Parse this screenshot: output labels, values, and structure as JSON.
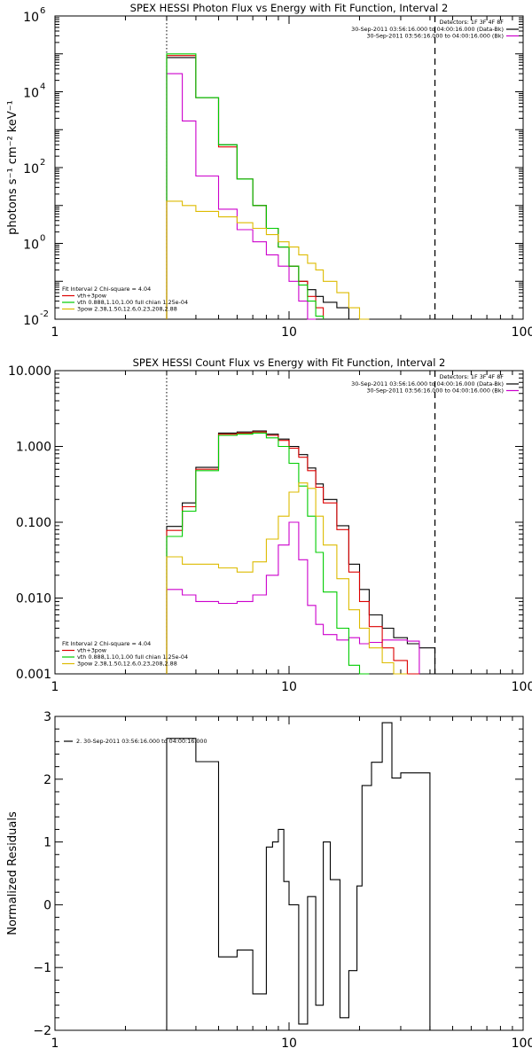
{
  "chart_data": [
    {
      "type": "line",
      "title": "SPEX HESSI Photon Flux vs Energy with Fit Function, Interval 2",
      "ylabel": "photons s⁻¹ cm⁻² keV⁻¹",
      "xlabel": "",
      "xscale": "log",
      "yscale": "log",
      "xlim": [
        1,
        100
      ],
      "ylim": [
        0.01,
        1000000
      ],
      "xticks": [
        {
          "v": 1,
          "label": "1"
        },
        {
          "v": 10,
          "label": "10"
        },
        {
          "v": 100,
          "label": "100"
        }
      ],
      "yticks": [
        {
          "v": 0.01,
          "label": "10",
          "exp": "-2"
        },
        {
          "v": 1,
          "label": "10",
          "exp": "0"
        },
        {
          "v": 100,
          "label": "10",
          "exp": "2"
        },
        {
          "v": 10000,
          "label": "10",
          "exp": "4"
        },
        {
          "v": 1000000,
          "label": "10",
          "exp": "6"
        }
      ],
      "vlines": [
        {
          "x": 3,
          "style": "dotted"
        },
        {
          "x": 42,
          "style": "dashed"
        }
      ],
      "legend_tr": {
        "header": "Detectors: 1F 3F 4F 8F",
        "entries": [
          {
            "text": "30-Sep-2011 03:56:16.000 to 04:00:16.000 (Data-Bk)",
            "color": "#000000"
          },
          {
            "text": "30-Sep-2011 03:56:16.000 to 04:00:16.000 (Bk)",
            "color": "#cc00cc"
          }
        ]
      },
      "legend_bl": {
        "header": "Fit Interval 2   Chi-square = 4.04",
        "entries": [
          {
            "text": "vth+3pow",
            "color": "#dd0000"
          },
          {
            "text": "vth 0.888,1.10,1.00  full chian 1.25e-04",
            "color": "#00cc00"
          },
          {
            "text": "3pow 2.38,1.50,12.6,0.23,208,2.88",
            "color": "#ddbb00"
          }
        ]
      },
      "edges": [
        3,
        3.5,
        4,
        5,
        6,
        7,
        8,
        9,
        10,
        11,
        12,
        13,
        14,
        16,
        18,
        20,
        22,
        25,
        28,
        32,
        36,
        42
      ],
      "series": [
        {
          "name": "Data-Bk",
          "color": "#000000",
          "values": [
            80000,
            80000,
            7000,
            400,
            50,
            10,
            2.5,
            0.8,
            0.25,
            0.1,
            0.06,
            0.04,
            0.028,
            0.02
          ]
        },
        {
          "name": "Bk",
          "color": "#cc00cc",
          "values": [
            30000,
            1700,
            60,
            8,
            2.3,
            1.1,
            0.5,
            0.25,
            0.1,
            0.03,
            0.007
          ]
        },
        {
          "name": "vth+3pow",
          "color": "#dd0000",
          "values": [
            90000,
            90000,
            7000,
            350,
            50,
            10,
            2.5,
            0.8,
            0.25,
            0.1,
            0.04,
            0.02
          ]
        },
        {
          "name": "vth",
          "color": "#00cc00",
          "values": [
            100000,
            100000,
            7000,
            400,
            50,
            10,
            2.5,
            0.8,
            0.25,
            0.08,
            0.03,
            0.012
          ]
        },
        {
          "name": "3pow",
          "color": "#ddbb00",
          "values": [
            13,
            10,
            7,
            5,
            3.5,
            2.5,
            1.7,
            1.1,
            0.8,
            0.5,
            0.3,
            0.2,
            0.1,
            0.05,
            0.02,
            0.01
          ]
        }
      ]
    },
    {
      "type": "line",
      "title": "SPEX HESSI Count Flux vs Energy with Fit Function, Interval 2",
      "xlabel": "",
      "ylabel": "",
      "xscale": "log",
      "yscale": "log",
      "xlim": [
        1,
        100
      ],
      "ylim": [
        0.001,
        10
      ],
      "xticks": [
        {
          "v": 1,
          "label": "1"
        },
        {
          "v": 10,
          "label": "10"
        },
        {
          "v": 100,
          "label": "100"
        }
      ],
      "yticks": [
        {
          "v": 0.001,
          "label": "0.001"
        },
        {
          "v": 0.01,
          "label": "0.010"
        },
        {
          "v": 0.1,
          "label": "0.100"
        },
        {
          "v": 1,
          "label": "1.000"
        },
        {
          "v": 10,
          "label": "10.000"
        }
      ],
      "vlines": [
        {
          "x": 3,
          "style": "dotted"
        },
        {
          "x": 42,
          "style": "dashed"
        }
      ],
      "legend_tr": {
        "header": "Detectors: 1F 3F 4F 8F",
        "entries": [
          {
            "text": "30-Sep-2011 03:56:16.000 to 04:00:16.000 (Data-Bk)",
            "color": "#000000"
          },
          {
            "text": "30-Sep-2011 03:56:16.000 to 04:00:16.000 (Bk)",
            "color": "#cc00cc"
          }
        ]
      },
      "legend_bl": {
        "header": "Fit Interval 2   Chi-square = 4.04",
        "entries": [
          {
            "text": "vth+3pow",
            "color": "#dd0000"
          },
          {
            "text": "vth 0.888,1.10,1.00  full chian 1.25e-04",
            "color": "#00cc00"
          },
          {
            "text": "3pow 2.38,1.50,12.6,0.23,208,2.88",
            "color": "#ddbb00"
          }
        ]
      },
      "edges": [
        3,
        3.5,
        4,
        5,
        6,
        7,
        8,
        9,
        10,
        11,
        12,
        13,
        14,
        16,
        18,
        20,
        22,
        25,
        28,
        32,
        36,
        42
      ],
      "series": [
        {
          "name": "Data-Bk",
          "color": "#000000",
          "values": [
            0.088,
            0.18,
            0.53,
            1.5,
            1.55,
            1.6,
            1.45,
            1.25,
            1.0,
            0.78,
            0.52,
            0.32,
            0.2,
            0.09,
            0.028,
            0.013,
            0.006,
            0.004,
            0.003,
            0.0025,
            0.0022
          ]
        },
        {
          "name": "Bk",
          "color": "#cc00cc",
          "values": [
            0.013,
            0.011,
            0.009,
            0.0085,
            0.009,
            0.011,
            0.02,
            0.05,
            0.1,
            0.032,
            0.008,
            0.0045,
            0.0033,
            0.0028,
            0.003,
            0.0025,
            0.0026,
            0.0028,
            0.0028,
            0.0027
          ]
        },
        {
          "name": "vth+3pow",
          "color": "#dd0000",
          "values": [
            0.078,
            0.16,
            0.5,
            1.45,
            1.5,
            1.55,
            1.4,
            1.2,
            0.95,
            0.72,
            0.48,
            0.29,
            0.18,
            0.08,
            0.022,
            0.009,
            0.0042,
            0.0022,
            0.0015,
            0.001
          ]
        },
        {
          "name": "vth",
          "color": "#00cc00",
          "values": [
            0.065,
            0.14,
            0.48,
            1.4,
            1.45,
            1.5,
            1.3,
            1.0,
            0.6,
            0.3,
            0.12,
            0.04,
            0.012,
            0.004,
            0.0013,
            0.001
          ]
        },
        {
          "name": "3pow",
          "color": "#ddbb00",
          "values": [
            0.035,
            0.028,
            0.028,
            0.025,
            0.022,
            0.03,
            0.06,
            0.12,
            0.25,
            0.33,
            0.28,
            0.12,
            0.05,
            0.018,
            0.007,
            0.004,
            0.0022,
            0.0014,
            0.001
          ]
        }
      ]
    },
    {
      "type": "line",
      "title": "",
      "ylabel": "Normalized Residuals",
      "xlabel": "",
      "xscale": "log",
      "yscale": "linear",
      "xlim": [
        1,
        100
      ],
      "ylim": [
        -2,
        3
      ],
      "xticks": [
        {
          "v": 1,
          "label": "1"
        },
        {
          "v": 10,
          "label": "10"
        },
        {
          "v": 100,
          "label": "100"
        }
      ],
      "yticks": [
        {
          "v": -2,
          "label": "−2"
        },
        {
          "v": -1,
          "label": "−1"
        },
        {
          "v": 0,
          "label": "0"
        },
        {
          "v": 1,
          "label": "1"
        },
        {
          "v": 2,
          "label": "2"
        },
        {
          "v": 3,
          "label": "3"
        }
      ],
      "legend_tl": {
        "entries": [
          {
            "text": "2. 30-Sep-2011 03:56:16.000 to 04:00:16.000",
            "color": "#000000"
          }
        ]
      },
      "edges": [
        3,
        4,
        5,
        6,
        7,
        8,
        8.5,
        9,
        9.5,
        10,
        11,
        12,
        13,
        14,
        15,
        16.5,
        18,
        19.5,
        20.5,
        22.5,
        25,
        27.5,
        30,
        33,
        36,
        40
      ],
      "series": [
        {
          "name": "residuals",
          "color": "#000000",
          "values": [
            2.65,
            2.28,
            -0.83,
            -0.72,
            -1.42,
            0.92,
            1.0,
            1.2,
            0.37,
            0.0,
            -1.9,
            0.13,
            -1.6,
            1.0,
            0.4,
            -1.8,
            -1.05,
            0.3,
            1.9,
            2.27,
            2.9,
            2.02,
            2.1,
            2.1,
            2.1
          ]
        }
      ]
    }
  ]
}
